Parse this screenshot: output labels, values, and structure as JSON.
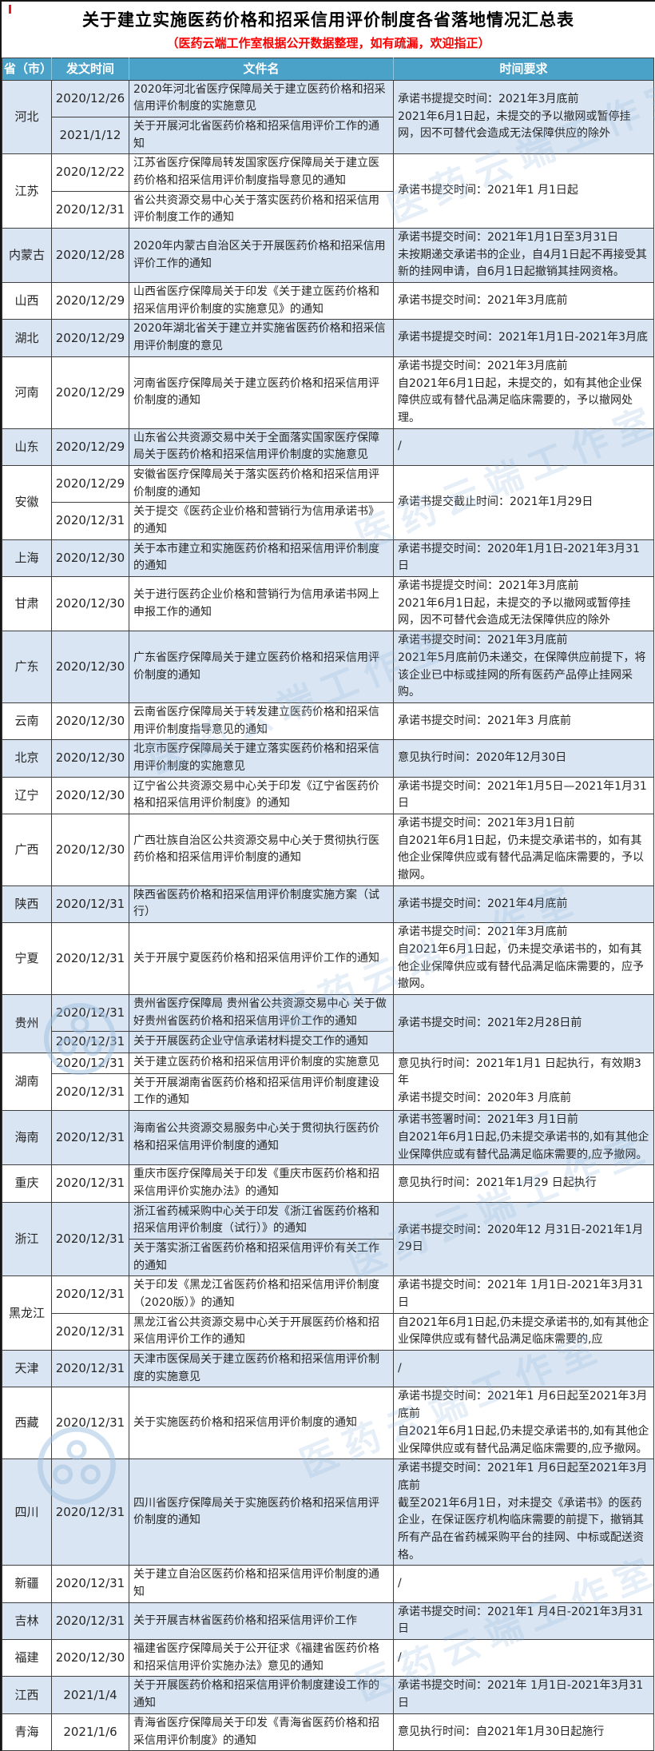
{
  "title": "关于建立实施医药价格和招采信用评价制度各省落地情况汇总表",
  "subtitle": "（医药云端工作室根据公开数据整理，如有疏漏，欢迎指正）",
  "watermark": {
    "text": "医药云端工作室"
  },
  "colors": {
    "header_bg": "#4AA2C9",
    "shaded_row_bg": "#D9E5F2",
    "subtitle_red": "#FE0000",
    "border": "#3F3F3F"
  },
  "table": {
    "headers": [
      "省（市）",
      "发文时间",
      "文件名",
      "时间要求"
    ],
    "groups": [
      {
        "province": "河北",
        "shaded": true,
        "docs": [
          {
            "date": "2020/12/26",
            "name": "2020年河北省医疗保障局关于建立医药价格和招采信用评价制度的实施意见"
          },
          {
            "date": "2021/1/12",
            "name": "关于开展河北省医药价格和招采信用评价工作的通知"
          }
        ],
        "time": "承诺书提提交时间：2021年3月底前\n2021年6月1日起，未提交的予以撤网或暂停挂网，因不可替代会造成无法保障供应的除外"
      },
      {
        "province": "江苏",
        "shaded": false,
        "docs": [
          {
            "date": "2020/12/22",
            "name": "江苏省医疗保障局转发国家医疗保障局关于建立医药价格和招采信用评价制度指导意见的通知"
          },
          {
            "date": "2020/12/31",
            "name": "省公共资源交易中心关于落实医药价格和招采信用评价制度工作的通知"
          }
        ],
        "time": "承诺书提交时间：2021年1 月1日起"
      },
      {
        "province": "内蒙古",
        "shaded": true,
        "docs": [
          {
            "date": "2020/12/28",
            "name": "2020年内蒙古自治区关于开展医药价格和招采信用评价工作的通知"
          }
        ],
        "time": "承诺书提交时间：2021年1月1日至3月31日\n未按期递交承诺书的企业，自4月1日起不再接受其新的挂网申请，自6月1日起撤销其挂网资格。"
      },
      {
        "province": "山西",
        "shaded": false,
        "docs": [
          {
            "date": "2020/12/29",
            "name": "山西省医疗保障局关于印发《关于建立医药价格和招采信用评价制度的实施意见》的通知"
          }
        ],
        "time": "承诺书提交时间：2021年3月底前"
      },
      {
        "province": "湖北",
        "shaded": true,
        "docs": [
          {
            "date": "2020/12/29",
            "name": "2020年湖北省关于建立并实施省医药价格和招采信用评价制度的意见"
          }
        ],
        "time": "承诺书提提交时间：2021年1月1日-2021年3月底"
      },
      {
        "province": "河南",
        "shaded": false,
        "docs": [
          {
            "date": "2020/12/29",
            "name": "河南省医疗保障局关于建立医药价格和招采信用评价制度的通知"
          }
        ],
        "time": "承诺书提交时间：2021年3月底前\n自2021年6月1日起，未提交的，如有其他企业保障供应或有替代品满足临床需要的，予以撤网处理。"
      },
      {
        "province": "山东",
        "shaded": true,
        "docs": [
          {
            "date": "2020/12/29",
            "name": "山东省公共资源交易中关于全面落实国家医疗保障局关于医药价格和招采信用评价制度的实施意见"
          }
        ],
        "time": "/"
      },
      {
        "province": "安徽",
        "shaded": false,
        "docs": [
          {
            "date": "2020/12/29",
            "name": "安徽省医疗保障局关于落实医药价格和招采信用评价制度的通知"
          },
          {
            "date": "2020/12/31",
            "name": "关于提交《医药企业价格和营销行为信用承诺书》的通知"
          }
        ],
        "time": "承诺书提交截止时间：2021年1月29日"
      },
      {
        "province": "上海",
        "shaded": true,
        "docs": [
          {
            "date": "2020/12/30",
            "name": "关于本市建立和实施医药价格和招采信用评价制度的通知"
          }
        ],
        "time": "承诺书提交时间：2020年1月1日-2021年3月31日"
      },
      {
        "province": "甘肃",
        "shaded": false,
        "docs": [
          {
            "date": "2020/12/30",
            "name": "关于进行医药企业价格和营销行为信用承诺书网上申报工作的通知"
          }
        ],
        "time": "承诺书提提交时间：2021年3月底前\n2021年6月1日起，未提交的予以撤网或暂停挂网，因不可替代会造成无法保障供应的除外"
      },
      {
        "province": "广东",
        "shaded": true,
        "docs": [
          {
            "date": "2020/12/30",
            "name": "广东省医疗保障局关于建立医药价格和招采信用评价制度的通知"
          }
        ],
        "time": "承诺书提交时间：2021年3月底前\n2021年5月底前仍未递交，在保障供应前提下，将该企业已中标或挂网的所有医药产品停止挂网采购。"
      },
      {
        "province": "云南",
        "shaded": false,
        "docs": [
          {
            "date": "2020/12/30",
            "name": "云南省医疗保障局关于转发建立医药价格和招采信用评价制度指导意见的通知"
          }
        ],
        "time": "承诺书提交时间：2021年3 月底前"
      },
      {
        "province": "北京",
        "shaded": true,
        "docs": [
          {
            "date": "2020/12/30",
            "name": "北京市医疗保障局关于建立落实医药价格和招采信用评价制度的实施意见"
          }
        ],
        "time": "意见执行时间：2020年12月30日"
      },
      {
        "province": "辽宁",
        "shaded": false,
        "docs": [
          {
            "date": "2020/12/30",
            "name": "辽宁省公共资源交易中心关于印发《辽宁省医药价格和招采信用评价制度》的通知"
          }
        ],
        "time": "承诺书提交时间：2021年1月5日—2021年1月31日"
      },
      {
        "province": "广西",
        "shaded": false,
        "docs": [
          {
            "date": "2020/12/30",
            "name": "广西壮族自治区公共资源交易中心关于贯彻执行医药价格和招采信用评价制度的通知"
          }
        ],
        "time": "承诺书提交时间：2021年3月1日前\n自2021年6月1日起，仍未提交承诺书的，如有其他企业保障供应或有替代品满足临床需要的，予以撤网。"
      },
      {
        "province": "陕西",
        "shaded": true,
        "docs": [
          {
            "date": "2020/12/31",
            "name": "陕西省医药价格和招采信用评价制度实施方案（试行）"
          }
        ],
        "time": "承诺书提交时间：2021年4月底前"
      },
      {
        "province": "宁夏",
        "shaded": false,
        "docs": [
          {
            "date": "2020/12/31",
            "name": "关于开展宁夏医药价格和招采信用评价工作的通知"
          }
        ],
        "time": "承诺书提交时间：2021年3月底前\n自2021年6月1日起，仍未提交承诺书的，如有其他企业保障供应或有替代品满足临床需要的，应予撤网。"
      },
      {
        "province": "贵州",
        "shaded": true,
        "docs": [
          {
            "date": "2020/12/31",
            "name": "贵州省医疗保障局 贵州省公共资源交易中心 关于做好贵州省医药价格和招采信用评价工作的通知"
          },
          {
            "date": "2020/12/31",
            "name": "关于开展医药企业守信承诺材料提交工作的通知"
          }
        ],
        "time": "承诺书提交时间：2021年2月28日前"
      },
      {
        "province": "湖南",
        "shaded": false,
        "docs": [
          {
            "date": "2020/12/31",
            "name": "关于建立医药价格和招采信用评价制度的实施意见"
          },
          {
            "date": "2020/12/31",
            "name": "关于开展湖南省医药价格和招采信用评价制度建设工作的通知"
          }
        ],
        "time": "意见执行时间：2021年1月1 日起执行，有效期3年\n承诺书提交时间：2020年3 月底前"
      },
      {
        "province": "海南",
        "shaded": true,
        "docs": [
          {
            "date": "2020/12/31",
            "name": "海南省公共资源交易服务中心关于贯彻执行医药价格和招采信用评价制度的通知"
          }
        ],
        "time": "承诺书签署时间：2021年3 月1日前\n自2021年6月1日起,仍未提交承诺书的,如有其他企业保障供应或有替代品满足临床需要的,应予撤网。"
      },
      {
        "province": "重庆",
        "shaded": false,
        "docs": [
          {
            "date": "2020/12/31",
            "name": "重庆市医疗保障局关于印发《重庆市医药价格和招采信用评价实施办法》的通知"
          }
        ],
        "time": "意见执行时间：2021年1月29 日起执行"
      },
      {
        "province": "浙江",
        "shaded": true,
        "date_span": true,
        "docs": [
          {
            "date": "2020/12/31",
            "name": "浙江省药械采购中心关于印发《浙江省医药价格和招采信用评价制度（试行）》的通知"
          },
          {
            "date": "2020/12/31",
            "name": "关于落实浙江省医药价格和招采信用评价有关工作的通知"
          }
        ],
        "time": "承诺书提交时间：2020年12 月31日-2021年1月29日"
      },
      {
        "province": "黑龙江",
        "shaded": false,
        "docs": [
          {
            "date": "2020/12/31",
            "name": "关于印发《黑龙江省医药价格和招采信用评价制度（2020版）》的通知"
          },
          {
            "date": "2020/12/31",
            "name": "黑龙江省公共资源交易中心关于开展医药价格和招采信用评价工作的通知"
          }
        ],
        "times": [
          "承诺书提交时间：2021年 1月1日-2021年3月31日",
          "自2021年6月1日起,仍未提交承诺书的,如有其他企业保障供应或有替代品满足临床需要的,应"
        ]
      },
      {
        "province": "天津",
        "shaded": true,
        "docs": [
          {
            "date": "2020/12/31",
            "name": "天津市医保局关于建立医药价格和招采信用评价制度的实施意见"
          }
        ],
        "time": "/"
      },
      {
        "province": "西藏",
        "shaded": false,
        "docs": [
          {
            "date": "2020/12/31",
            "name": "关于实施医药价格和招采信用评价制度的通知"
          }
        ],
        "time": "承诺书提交时间：2021年1 月6日起至2021年3月底前\n自2021年6月1日起,仍未提交承诺书的,如有其他企业保障供应或有替代品满足临床需要的,应予撤网。"
      },
      {
        "province": "四川",
        "shaded": true,
        "docs": [
          {
            "date": "2020/12/31",
            "name": "四川省医疗保障局关于实施医药价格和招采信用评价制度的通知"
          }
        ],
        "time": "承诺书提交时间：2021年1 月6日起至2021年3月底前\n截至2021年6月1日，对未提交《承诺书》的医药企业，在保证医疗机构临床需要的前提下，撤销其所有产品在省药械采购平台的挂网、中标或配送资格。"
      },
      {
        "province": "新疆",
        "shaded": false,
        "docs": [
          {
            "date": "2020/12/31",
            "name": "关于建立自治区医药价格和招采信用评价制度的通知"
          }
        ],
        "time": "/"
      },
      {
        "province": "吉林",
        "shaded": true,
        "docs": [
          {
            "date": "2020/12/31",
            "name": "关于开展吉林省医药价格和招采信用评价工作"
          }
        ],
        "time": "承诺书提交时间：2021年1 月4日-2021年3月31日"
      },
      {
        "province": "福建",
        "shaded": false,
        "docs": [
          {
            "date": "2020/12/30",
            "name": "福建省医疗保障局关于公开征求《福建省医药价格和招采信用评价实施办法》意见的通知"
          }
        ],
        "time": "/"
      },
      {
        "province": "江西",
        "shaded": true,
        "docs": [
          {
            "date": "2021/1/4",
            "name": "关于开展医药价格和招采信用评价制度建设工作的通知"
          }
        ],
        "time": "承诺书提交时间：2021年 1月1日-2021年3月31日"
      },
      {
        "province": "青海",
        "shaded": false,
        "docs": [
          {
            "date": "2021/1/6",
            "name": "青海省医疗保障局关于印发《青海省医药价格和招采信用评价制度》的通知"
          }
        ],
        "time": "意见执行时间：自2021年1月30日起施行"
      }
    ]
  }
}
